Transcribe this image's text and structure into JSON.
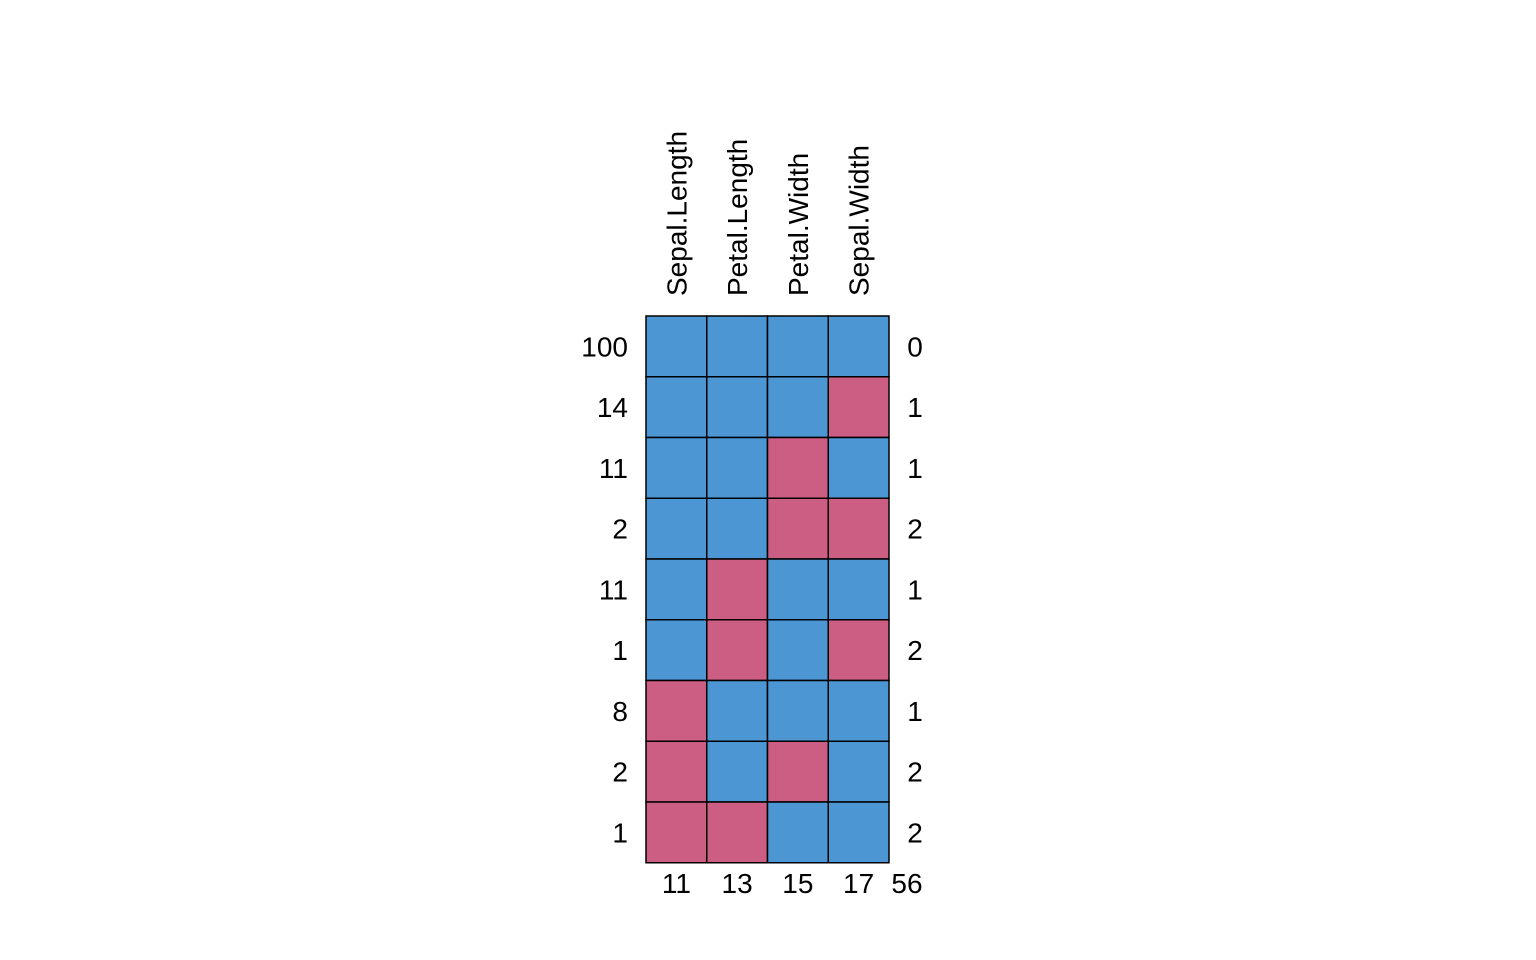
{
  "chart_data": {
    "type": "heatmap",
    "title": "",
    "columns": [
      "Sepal.Length",
      "Petal.Length",
      "Petal.Width",
      "Sepal.Width"
    ],
    "row_counts": [
      "100",
      "14",
      "11",
      "2",
      "11",
      "1",
      "8",
      "2",
      "1"
    ],
    "row_missing": [
      "0",
      "1",
      "1",
      "2",
      "1",
      "2",
      "1",
      "2",
      "2"
    ],
    "column_missing": [
      "11",
      "13",
      "15",
      "17"
    ],
    "total_missing": "56",
    "pattern": [
      [
        1,
        1,
        1,
        1
      ],
      [
        1,
        1,
        1,
        0
      ],
      [
        1,
        1,
        0,
        1
      ],
      [
        1,
        1,
        0,
        0
      ],
      [
        1,
        0,
        1,
        1
      ],
      [
        1,
        0,
        1,
        0
      ],
      [
        0,
        1,
        1,
        1
      ],
      [
        0,
        1,
        0,
        1
      ],
      [
        0,
        0,
        1,
        1
      ]
    ],
    "colors": {
      "observed": "#4C97D3",
      "missing": "#CC5E83"
    }
  }
}
